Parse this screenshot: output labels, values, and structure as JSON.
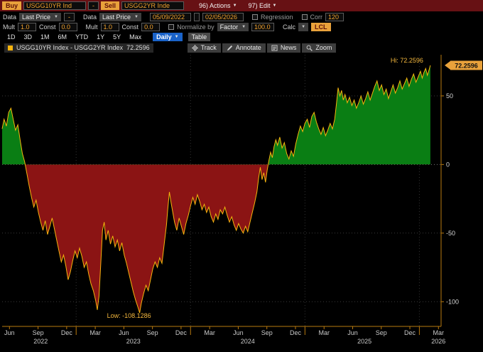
{
  "toolbar": {
    "buy_label": "Buy",
    "buy_ticker": "USGG10YR Ind",
    "pair_separator": "-",
    "sell_label": "Sell",
    "sell_ticker": "USGG2YR Inde",
    "actions_menu": "96) Actions",
    "edit_menu": "97) Edit"
  },
  "controls": {
    "data_label_1": "Data",
    "field_type_1": "Last Price",
    "operator": "-",
    "data_label_2": "Data",
    "field_type_2": "Last Price",
    "date_from": "05/09/2022",
    "date_to": "02/05/2026",
    "regression_label": "Regression",
    "corr_label": "Corr",
    "corr_value": "120",
    "mult_label_1": "Mult",
    "mult_value_1": "1.0",
    "const_label_1": "Const",
    "const_value_1": "0.0",
    "mult_label_2": "Mult",
    "mult_value_2": "1.0",
    "const_label_2": "Const",
    "const_value_2": "0.0",
    "normalize_label": "Normalize by",
    "normalize_mode": "Factor",
    "normalize_value": "100.0",
    "calc_label": "Calc",
    "currency_label": "LCL"
  },
  "periods": [
    "1D",
    "3D",
    "1M",
    "6M",
    "YTD",
    "1Y",
    "5Y",
    "Max"
  ],
  "frequency": "Daily",
  "table_label": "Table",
  "chart_tools": [
    "Track",
    "Annotate",
    "News",
    "Zoom"
  ],
  "legend": {
    "series_label": "USGG10YR Index - USGG2YR Index",
    "value": "72.2596"
  },
  "chart_data": {
    "type": "area",
    "title": "USGG10YR Index - USGG2YR Index spread (basis points)",
    "x_range": [
      2022.353,
      2026.19
    ],
    "y_range": [
      -118,
      80
    ],
    "y_ticks": [
      50,
      0,
      -50,
      -100
    ],
    "x_ticks": [
      {
        "t": 2022.417,
        "label": "Jun"
      },
      {
        "t": 2022.667,
        "label": "Sep"
      },
      {
        "t": 2022.917,
        "label": "Dec"
      },
      {
        "t": 2023.167,
        "label": "Mar"
      },
      {
        "t": 2023.417,
        "label": "Jun"
      },
      {
        "t": 2023.667,
        "label": "Sep"
      },
      {
        "t": 2023.917,
        "label": "Dec"
      },
      {
        "t": 2024.167,
        "label": "Mar"
      },
      {
        "t": 2024.417,
        "label": "Jun"
      },
      {
        "t": 2024.667,
        "label": "Sep"
      },
      {
        "t": 2024.917,
        "label": "Dec"
      },
      {
        "t": 2025.167,
        "label": "Mar"
      },
      {
        "t": 2025.417,
        "label": "Jun"
      },
      {
        "t": 2025.667,
        "label": "Sep"
      },
      {
        "t": 2025.917,
        "label": "Dec"
      },
      {
        "t": 2026.167,
        "label": "Mar"
      }
    ],
    "year_gridlines": [
      2023,
      2024,
      2025,
      2026
    ],
    "year_labels": [
      {
        "t": 2022.69,
        "label": "2022"
      },
      {
        "t": 2023.5,
        "label": "2023"
      },
      {
        "t": 2024.5,
        "label": "2024"
      },
      {
        "t": 2025.52,
        "label": "2025"
      },
      {
        "t": 2026.167,
        "label": "2026"
      }
    ],
    "hi": {
      "x": 2026.096,
      "y": 72.2596,
      "label": "Hi: 72.2596"
    },
    "low": {
      "x": 2023.555,
      "y": -108.1286,
      "label": "Low: -108.1286"
    },
    "last_value": 72.2596,
    "last_label": "72.2596",
    "colors": {
      "line": "#F6B40E",
      "positive_fill": "#0A7E14",
      "negative_fill": "#8B1414",
      "axis": "#B97A0F",
      "annotation": "#F5B83D",
      "badge": "#E9A23B"
    },
    "series": [
      {
        "name": "USGG10YR Index - USGG2YR Index",
        "points": [
          [
            2022.353,
            26
          ],
          [
            2022.37,
            33
          ],
          [
            2022.39,
            28
          ],
          [
            2022.41,
            38
          ],
          [
            2022.43,
            41
          ],
          [
            2022.45,
            33
          ],
          [
            2022.47,
            25
          ],
          [
            2022.49,
            29
          ],
          [
            2022.51,
            18
          ],
          [
            2022.53,
            8
          ],
          [
            2022.55,
            2
          ],
          [
            2022.57,
            -7
          ],
          [
            2022.59,
            -16
          ],
          [
            2022.61,
            -24
          ],
          [
            2022.63,
            -31
          ],
          [
            2022.65,
            -26
          ],
          [
            2022.67,
            -35
          ],
          [
            2022.69,
            -42
          ],
          [
            2022.71,
            -48
          ],
          [
            2022.73,
            -41
          ],
          [
            2022.75,
            -51
          ],
          [
            2022.77,
            -45
          ],
          [
            2022.79,
            -39
          ],
          [
            2022.81,
            -47
          ],
          [
            2022.83,
            -55
          ],
          [
            2022.85,
            -63
          ],
          [
            2022.87,
            -71
          ],
          [
            2022.89,
            -66
          ],
          [
            2022.91,
            -74
          ],
          [
            2022.93,
            -84
          ],
          [
            2022.95,
            -78
          ],
          [
            2022.97,
            -70
          ],
          [
            2022.99,
            -63
          ],
          [
            2023.01,
            -68
          ],
          [
            2023.03,
            -61
          ],
          [
            2023.05,
            -67
          ],
          [
            2023.07,
            -75
          ],
          [
            2023.09,
            -71
          ],
          [
            2023.11,
            -80
          ],
          [
            2023.13,
            -87
          ],
          [
            2023.15,
            -92
          ],
          [
            2023.17,
            -99
          ],
          [
            2023.185,
            -106
          ],
          [
            2023.2,
            -96
          ],
          [
            2023.215,
            -73
          ],
          [
            2023.23,
            -48
          ],
          [
            2023.245,
            -42
          ],
          [
            2023.26,
            -55
          ],
          [
            2023.28,
            -48
          ],
          [
            2023.3,
            -58
          ],
          [
            2023.32,
            -52
          ],
          [
            2023.34,
            -60
          ],
          [
            2023.36,
            -55
          ],
          [
            2023.38,
            -63
          ],
          [
            2023.4,
            -57
          ],
          [
            2023.42,
            -66
          ],
          [
            2023.44,
            -72
          ],
          [
            2023.46,
            -79
          ],
          [
            2023.48,
            -86
          ],
          [
            2023.5,
            -93
          ],
          [
            2023.52,
            -99
          ],
          [
            2023.54,
            -104
          ],
          [
            2023.555,
            -108.13
          ],
          [
            2023.57,
            -101
          ],
          [
            2023.59,
            -94
          ],
          [
            2023.61,
            -88
          ],
          [
            2023.63,
            -92
          ],
          [
            2023.65,
            -84
          ],
          [
            2023.67,
            -76
          ],
          [
            2023.69,
            -71
          ],
          [
            2023.71,
            -75
          ],
          [
            2023.73,
            -68
          ],
          [
            2023.75,
            -72
          ],
          [
            2023.77,
            -58
          ],
          [
            2023.79,
            -44
          ],
          [
            2023.8,
            -33
          ],
          [
            2023.815,
            -20
          ],
          [
            2023.83,
            -28
          ],
          [
            2023.845,
            -35
          ],
          [
            2023.86,
            -42
          ],
          [
            2023.88,
            -48
          ],
          [
            2023.9,
            -39
          ],
          [
            2023.92,
            -45
          ],
          [
            2023.94,
            -51
          ],
          [
            2023.96,
            -43
          ],
          [
            2023.98,
            -37
          ],
          [
            2024.0,
            -30
          ],
          [
            2024.02,
            -24
          ],
          [
            2024.04,
            -29
          ],
          [
            2024.06,
            -22
          ],
          [
            2024.08,
            -27
          ],
          [
            2024.1,
            -33
          ],
          [
            2024.12,
            -29
          ],
          [
            2024.14,
            -35
          ],
          [
            2024.16,
            -31
          ],
          [
            2024.18,
            -38
          ],
          [
            2024.2,
            -42
          ],
          [
            2024.22,
            -36
          ],
          [
            2024.24,
            -40
          ],
          [
            2024.26,
            -33
          ],
          [
            2024.28,
            -36
          ],
          [
            2024.3,
            -31
          ],
          [
            2024.32,
            -37
          ],
          [
            2024.34,
            -42
          ],
          [
            2024.36,
            -38
          ],
          [
            2024.38,
            -44
          ],
          [
            2024.4,
            -48
          ],
          [
            2024.42,
            -43
          ],
          [
            2024.44,
            -47
          ],
          [
            2024.46,
            -50
          ],
          [
            2024.48,
            -45
          ],
          [
            2024.5,
            -49
          ],
          [
            2024.52,
            -42
          ],
          [
            2024.54,
            -35
          ],
          [
            2024.56,
            -28
          ],
          [
            2024.58,
            -20
          ],
          [
            2024.595,
            -10
          ],
          [
            2024.61,
            -2
          ],
          [
            2024.625,
            -11
          ],
          [
            2024.64,
            -6
          ],
          [
            2024.655,
            -13
          ],
          [
            2024.67,
            -4
          ],
          [
            2024.685,
            3
          ],
          [
            2024.7,
            9
          ],
          [
            2024.715,
            5
          ],
          [
            2024.73,
            13
          ],
          [
            2024.745,
            18
          ],
          [
            2024.76,
            14
          ],
          [
            2024.78,
            20
          ],
          [
            2024.8,
            12
          ],
          [
            2024.82,
            16
          ],
          [
            2024.84,
            8
          ],
          [
            2024.86,
            4
          ],
          [
            2024.88,
            10
          ],
          [
            2024.9,
            6
          ],
          [
            2024.92,
            15
          ],
          [
            2024.94,
            22
          ],
          [
            2024.96,
            28
          ],
          [
            2024.98,
            24
          ],
          [
            2025.0,
            30
          ],
          [
            2025.02,
            33
          ],
          [
            2025.04,
            27
          ],
          [
            2025.06,
            35
          ],
          [
            2025.08,
            38
          ],
          [
            2025.1,
            31
          ],
          [
            2025.12,
            26
          ],
          [
            2025.14,
            22
          ],
          [
            2025.16,
            27
          ],
          [
            2025.18,
            21
          ],
          [
            2025.2,
            25
          ],
          [
            2025.22,
            30
          ],
          [
            2025.24,
            26
          ],
          [
            2025.26,
            33
          ],
          [
            2025.275,
            44
          ],
          [
            2025.29,
            56
          ],
          [
            2025.305,
            50
          ],
          [
            2025.32,
            54
          ],
          [
            2025.335,
            47
          ],
          [
            2025.35,
            51
          ],
          [
            2025.37,
            45
          ],
          [
            2025.39,
            49
          ],
          [
            2025.41,
            43
          ],
          [
            2025.43,
            47
          ],
          [
            2025.45,
            41
          ],
          [
            2025.47,
            45
          ],
          [
            2025.49,
            50
          ],
          [
            2025.51,
            44
          ],
          [
            2025.53,
            48
          ],
          [
            2025.55,
            53
          ],
          [
            2025.57,
            47
          ],
          [
            2025.59,
            52
          ],
          [
            2025.61,
            57
          ],
          [
            2025.63,
            61
          ],
          [
            2025.65,
            54
          ],
          [
            2025.67,
            58
          ],
          [
            2025.69,
            51
          ],
          [
            2025.71,
            55
          ],
          [
            2025.73,
            48
          ],
          [
            2025.75,
            53
          ],
          [
            2025.77,
            58
          ],
          [
            2025.79,
            52
          ],
          [
            2025.81,
            56
          ],
          [
            2025.83,
            61
          ],
          [
            2025.85,
            55
          ],
          [
            2025.87,
            59
          ],
          [
            2025.89,
            63
          ],
          [
            2025.91,
            57
          ],
          [
            2025.93,
            62
          ],
          [
            2025.95,
            66
          ],
          [
            2025.97,
            60
          ],
          [
            2025.99,
            64
          ],
          [
            2026.01,
            68
          ],
          [
            2026.025,
            63
          ],
          [
            2026.04,
            67
          ],
          [
            2026.055,
            70
          ],
          [
            2026.07,
            65
          ],
          [
            2026.085,
            69
          ],
          [
            2026.096,
            72.2596
          ]
        ]
      }
    ]
  }
}
